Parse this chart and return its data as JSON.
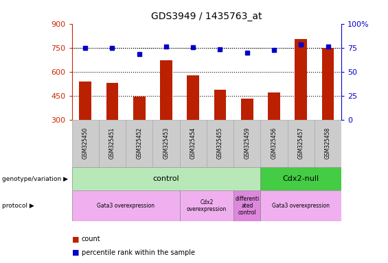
{
  "title": "GDS3949 / 1435763_at",
  "samples": [
    "GSM325450",
    "GSM325451",
    "GSM325452",
    "GSM325453",
    "GSM325454",
    "GSM325455",
    "GSM325459",
    "GSM325456",
    "GSM325457",
    "GSM325458"
  ],
  "counts": [
    540,
    530,
    445,
    670,
    578,
    488,
    430,
    470,
    805,
    750
  ],
  "percentile_ranks": [
    74.5,
    74.5,
    68.5,
    76,
    75.5,
    73.5,
    70,
    72.5,
    78,
    76
  ],
  "ylim_left": [
    300,
    900
  ],
  "ylim_right": [
    0,
    100
  ],
  "yticks_left": [
    300,
    450,
    600,
    750,
    900
  ],
  "yticks_right": [
    0,
    25,
    50,
    75,
    100
  ],
  "ytick_right_labels": [
    "0",
    "25",
    "50",
    "75",
    "100%"
  ],
  "bar_color": "#bb2000",
  "dot_color": "#0000cc",
  "dot_hline": 75,
  "grid_lines": [
    450,
    600,
    750
  ],
  "genotype_groups": [
    {
      "label": "control",
      "start": 0,
      "end": 7,
      "color": "#b8e8b8"
    },
    {
      "label": "Cdx2-null",
      "start": 7,
      "end": 10,
      "color": "#44cc44"
    }
  ],
  "protocol_groups": [
    {
      "label": "Gata3 overexpression",
      "start": 0,
      "end": 4,
      "color": "#f0b0f0"
    },
    {
      "label": "Cdx2\noverexpression",
      "start": 4,
      "end": 6,
      "color": "#f0b0f0"
    },
    {
      "label": "differenti\nated\ncontrol",
      "start": 6,
      "end": 7,
      "color": "#dd88dd"
    },
    {
      "label": "Gata3 overexpression",
      "start": 7,
      "end": 10,
      "color": "#f0b0f0"
    }
  ],
  "legend_items": [
    {
      "label": "count",
      "color": "#bb2000"
    },
    {
      "label": "percentile rank within the sample",
      "color": "#0000cc"
    }
  ],
  "left_tick_color": "#cc2200",
  "right_tick_color": "#0000cc",
  "title_fontsize": 10
}
